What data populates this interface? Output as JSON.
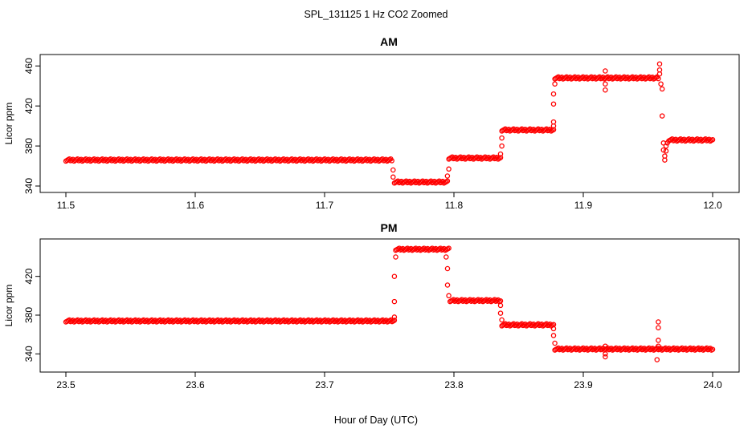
{
  "figure": {
    "title": "SPL_131125  1 Hz CO2 Zoomed",
    "xlabel": "Hour of Day (UTC)",
    "point_color": "#ff0000",
    "marker": "open-circle"
  },
  "chart_data": [
    {
      "type": "scatter",
      "title": "AM",
      "xlabel": "",
      "ylabel": "Licor ppm",
      "xlim": [
        11.5,
        12.0
      ],
      "ylim": [
        340,
        465
      ],
      "xticks": [
        "11.5",
        "11.6",
        "11.7",
        "11.8",
        "11.9",
        "12.0"
      ],
      "xtick_values": [
        11.5,
        11.6,
        11.7,
        11.8,
        11.9,
        12.0
      ],
      "yticks": [
        "340",
        "380",
        "420",
        "460"
      ],
      "ytick_values": [
        340,
        380,
        420,
        460
      ],
      "series": [
        {
          "segments": [
            {
              "x0": 11.5,
              "x1": 11.752,
              "y": 366
            },
            {
              "x0": 11.754,
              "x1": 11.795,
              "y": 344
            },
            {
              "x0": 11.796,
              "x1": 11.836,
              "y": 368
            },
            {
              "x0": 11.837,
              "x1": 11.877,
              "y": 396
            },
            {
              "x0": 11.878,
              "x1": 11.958,
              "y": 448
            },
            {
              "x0": 11.966,
              "x1": 12.0,
              "y": 386
            }
          ],
          "points": [
            {
              "x": 11.753,
              "y": 356
            },
            {
              "x": 11.753,
              "y": 349
            },
            {
              "x": 11.795,
              "y": 350
            },
            {
              "x": 11.796,
              "y": 357
            },
            {
              "x": 11.836,
              "y": 372
            },
            {
              "x": 11.837,
              "y": 380
            },
            {
              "x": 11.837,
              "y": 388
            },
            {
              "x": 11.877,
              "y": 400
            },
            {
              "x": 11.877,
              "y": 404
            },
            {
              "x": 11.877,
              "y": 422
            },
            {
              "x": 11.877,
              "y": 432
            },
            {
              "x": 11.878,
              "y": 442
            },
            {
              "x": 11.917,
              "y": 455
            },
            {
              "x": 11.917,
              "y": 442
            },
            {
              "x": 11.917,
              "y": 436
            },
            {
              "x": 11.959,
              "y": 462
            },
            {
              "x": 11.959,
              "y": 456
            },
            {
              "x": 11.959,
              "y": 452
            },
            {
              "x": 11.96,
              "y": 442
            },
            {
              "x": 11.961,
              "y": 437
            },
            {
              "x": 11.961,
              "y": 410
            },
            {
              "x": 11.962,
              "y": 383
            },
            {
              "x": 11.962,
              "y": 376
            },
            {
              "x": 11.963,
              "y": 370
            },
            {
              "x": 11.963,
              "y": 366
            },
            {
              "x": 11.964,
              "y": 375
            },
            {
              "x": 11.964,
              "y": 380
            },
            {
              "x": 11.965,
              "y": 383
            }
          ]
        }
      ]
    },
    {
      "type": "scatter",
      "title": "PM",
      "xlabel": "",
      "ylabel": "Licor ppm",
      "xlim": [
        23.5,
        24.0
      ],
      "ylim": [
        332,
        452
      ],
      "xticks": [
        "23.5",
        "23.6",
        "23.7",
        "23.8",
        "23.9",
        "24.0"
      ],
      "xtick_values": [
        23.5,
        23.6,
        23.7,
        23.8,
        23.9,
        24.0
      ],
      "yticks": [
        "340",
        "380",
        "420"
      ],
      "ytick_values": [
        340,
        380,
        420
      ],
      "series": [
        {
          "segments": [
            {
              "x0": 23.5,
              "x1": 23.754,
              "y": 374
            },
            {
              "x0": 23.755,
              "x1": 23.796,
              "y": 448
            },
            {
              "x0": 23.797,
              "x1": 23.836,
              "y": 395
            },
            {
              "x0": 23.837,
              "x1": 23.877,
              "y": 370
            },
            {
              "x0": 23.878,
              "x1": 24.0,
              "y": 345
            }
          ],
          "points": [
            {
              "x": 23.754,
              "y": 378
            },
            {
              "x": 23.754,
              "y": 394
            },
            {
              "x": 23.754,
              "y": 420
            },
            {
              "x": 23.755,
              "y": 440
            },
            {
              "x": 23.794,
              "y": 440
            },
            {
              "x": 23.795,
              "y": 428
            },
            {
              "x": 23.795,
              "y": 411
            },
            {
              "x": 23.796,
              "y": 400
            },
            {
              "x": 23.836,
              "y": 390
            },
            {
              "x": 23.836,
              "y": 382
            },
            {
              "x": 23.837,
              "y": 375
            },
            {
              "x": 23.877,
              "y": 366
            },
            {
              "x": 23.877,
              "y": 359
            },
            {
              "x": 23.878,
              "y": 351
            },
            {
              "x": 23.917,
              "y": 348
            },
            {
              "x": 23.917,
              "y": 340
            },
            {
              "x": 23.917,
              "y": 337
            },
            {
              "x": 23.958,
              "y": 373
            },
            {
              "x": 23.958,
              "y": 367
            },
            {
              "x": 23.958,
              "y": 354
            },
            {
              "x": 23.958,
              "y": 348
            },
            {
              "x": 23.957,
              "y": 334
            }
          ]
        }
      ]
    }
  ]
}
